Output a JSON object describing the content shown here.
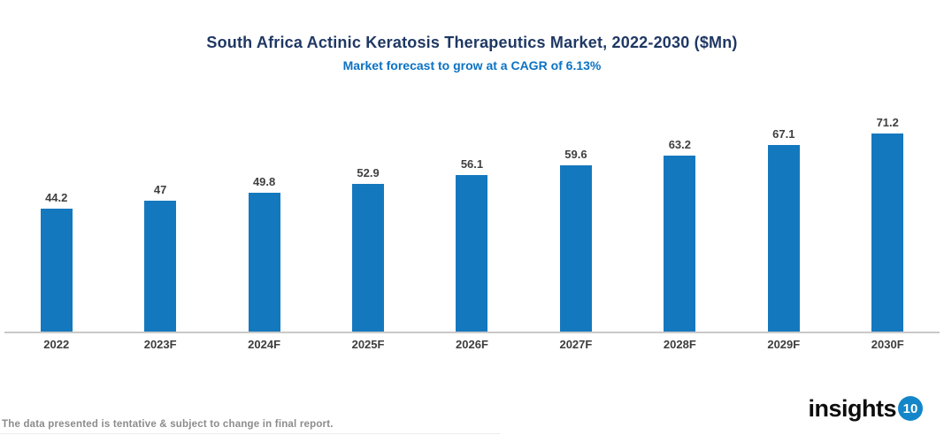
{
  "header": {
    "title": "South Africa Actinic Keratosis Therapeutics Market, 2022-2030 ($Mn)",
    "subtitle": "Market forecast to grow at a CAGR of 6.13%"
  },
  "chart_data": {
    "type": "bar",
    "title": "South Africa Actinic Keratosis Therapeutics Market, 2022-2030 ($Mn)",
    "subtitle": "Market forecast to grow at a CAGR of 6.13%",
    "categories": [
      "2022",
      "2023F",
      "2024F",
      "2025F",
      "2026F",
      "2027F",
      "2028F",
      "2029F",
      "2030F"
    ],
    "values": [
      44.2,
      47,
      49.8,
      52.9,
      56.1,
      59.6,
      63.2,
      67.1,
      71.2
    ],
    "data_labels": [
      "44.2",
      "47",
      "49.8",
      "52.9",
      "56.1",
      "59.6",
      "63.2",
      "67.1",
      "71.2"
    ],
    "xlabel": "",
    "ylabel": "",
    "ylim": [
      0,
      78
    ],
    "grid": false,
    "legend": false,
    "y_axis_visible": false,
    "bar_color": "#1478BE"
  },
  "footer": {
    "disclaimer": "The data presented is tentative & subject to change in final report.",
    "logo_text": "insights",
    "logo_badge": "10"
  },
  "colors": {
    "title": "#1F3864",
    "subtitle": "#0B72C4",
    "bar": "#1478BE",
    "value_label": "#3F3F3F",
    "category_label": "#3D3D3D",
    "axis_line": "#C9C9C9",
    "footer_text": "#8C8C8C",
    "logo_badge_bg": "#1386C9",
    "logo_badge_text": "#FFFFFF"
  }
}
